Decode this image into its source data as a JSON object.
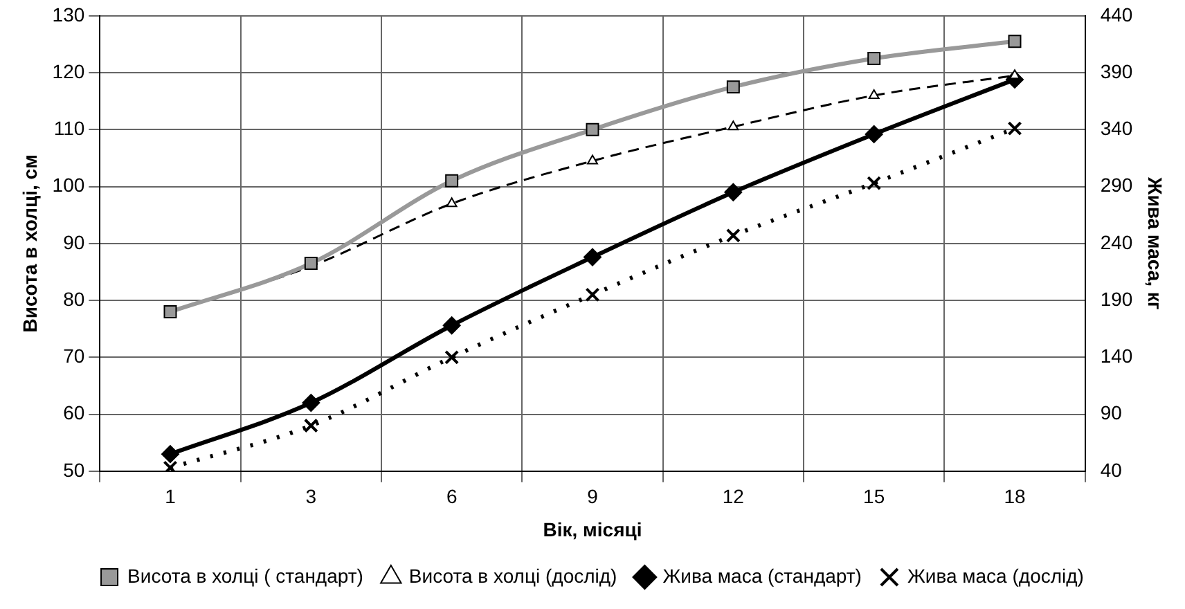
{
  "chart_data": {
    "type": "line",
    "xlabel": "Вік, місяці",
    "ylabel": "Висота в холці, см",
    "y2label": "Жива маса, кг",
    "categories": [
      "1",
      "3",
      "6",
      "9",
      "12",
      "15",
      "18"
    ],
    "series": [
      {
        "name": "Висота в холці ( стандарт)",
        "color": "#999999",
        "marker": "square",
        "line_style": "solid",
        "values": [
          78,
          86.5,
          101,
          110,
          117.5,
          122.5,
          125.5
        ]
      },
      {
        "name": "Висота в холці (дослід)",
        "color": "#000000",
        "marker": "triangle",
        "line_style": "dashed",
        "values": [
          78,
          86,
          97,
          104.5,
          110.5,
          116,
          119.5
        ]
      },
      {
        "name": "Жива маса (стандарт)",
        "color": "#000000",
        "marker": "diamond",
        "line_style": "solid",
        "axis": "y2",
        "values": [
          55,
          100,
          168,
          228,
          285,
          336,
          384
        ]
      },
      {
        "name": "Жива маса (дослід)",
        "color": "#000000",
        "marker": "cross",
        "line_style": "dotted",
        "axis": "y2",
        "values": [
          43,
          80,
          140,
          195,
          247,
          293,
          341
        ]
      }
    ],
    "ylim": [
      50,
      130
    ],
    "yticks": [
      50,
      60,
      70,
      80,
      90,
      100,
      110,
      120,
      130
    ],
    "y2lim": [
      40,
      440
    ],
    "y2ticks": [
      40,
      90,
      140,
      190,
      240,
      290,
      340,
      390,
      440
    ],
    "grid": true,
    "legend": "bottom"
  }
}
